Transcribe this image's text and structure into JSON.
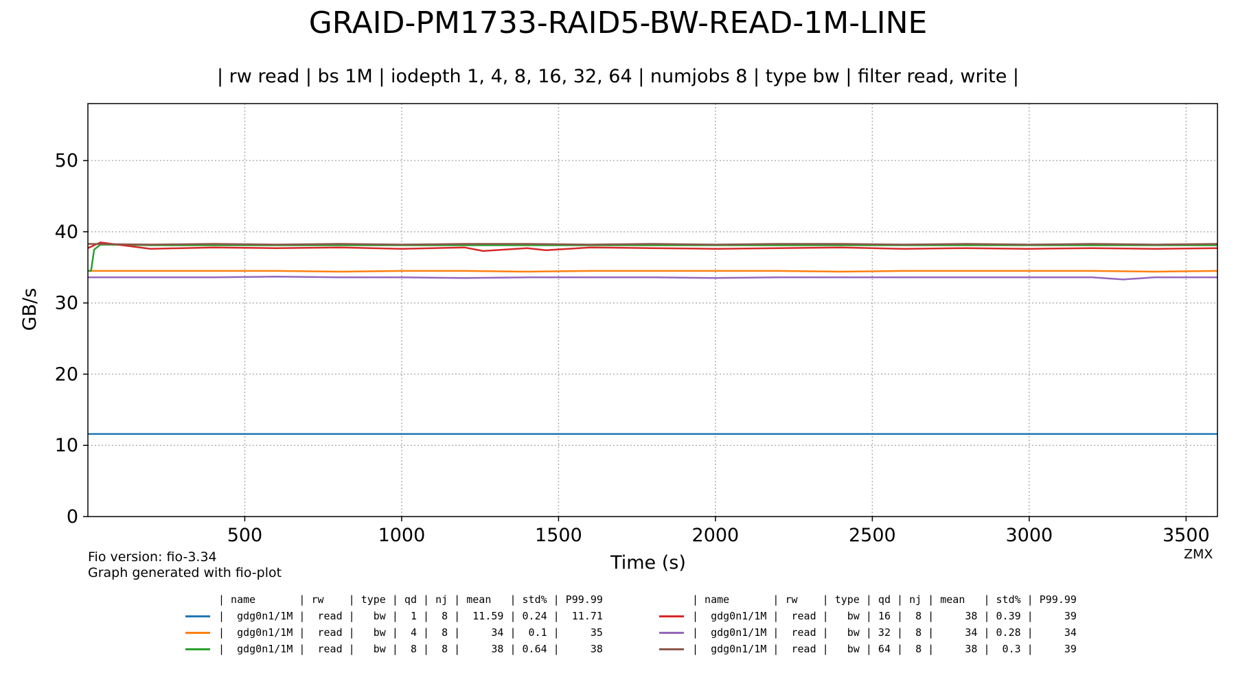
{
  "chart_data": {
    "type": "line",
    "title": "GRAID-PM1733-RAID5-BW-READ-1M-LINE",
    "subtitle": "| rw read | bs 1M | iodepth 1, 4, 8, 16, 32, 64 | numjobs 8 | type bw | filter read, write |",
    "xlabel": "Time (s)",
    "ylabel": "GB/s",
    "xlim": [
      0,
      3600
    ],
    "ylim": [
      0,
      58
    ],
    "xticks": [
      500,
      1000,
      1500,
      2000,
      2500,
      3000,
      3500
    ],
    "yticks": [
      0,
      10,
      20,
      30,
      40,
      50
    ],
    "grid": true,
    "legend_placement": "bottom-center",
    "series": [
      {
        "color": "#1f77b4",
        "x": [
          0,
          200,
          400,
          600,
          800,
          1000,
          1200,
          1400,
          1600,
          1800,
          2000,
          2200,
          2400,
          2600,
          2800,
          3000,
          3200,
          3400,
          3600
        ],
        "y": [
          11.6,
          11.6,
          11.6,
          11.6,
          11.6,
          11.6,
          11.6,
          11.6,
          11.6,
          11.6,
          11.6,
          11.6,
          11.6,
          11.6,
          11.6,
          11.6,
          11.6,
          11.6,
          11.6
        ]
      },
      {
        "color": "#ff7f0e",
        "x": [
          0,
          200,
          400,
          600,
          800,
          1000,
          1200,
          1400,
          1600,
          1800,
          2000,
          2200,
          2400,
          2600,
          2800,
          3000,
          3200,
          3400,
          3600
        ],
        "y": [
          34.5,
          34.5,
          34.5,
          34.5,
          34.4,
          34.5,
          34.5,
          34.4,
          34.5,
          34.5,
          34.5,
          34.5,
          34.4,
          34.5,
          34.5,
          34.5,
          34.5,
          34.4,
          34.5
        ]
      },
      {
        "color": "#2ca02c",
        "x": [
          0,
          10,
          20,
          40,
          200,
          400,
          600,
          800,
          1000,
          1200,
          1400,
          1600,
          1800,
          2000,
          2200,
          2400,
          2600,
          2800,
          3000,
          3200,
          3400,
          3600
        ],
        "y": [
          34.5,
          34.5,
          37.5,
          38.2,
          38.1,
          38.1,
          38.1,
          38.1,
          38.1,
          38.1,
          38.1,
          38.1,
          38.1,
          38.1,
          38.1,
          38.1,
          38.1,
          38.1,
          38.1,
          38.1,
          38.1,
          38.1
        ]
      },
      {
        "color": "#d62728",
        "x": [
          0,
          40,
          200,
          400,
          600,
          800,
          1000,
          1200,
          1260,
          1400,
          1460,
          1600,
          1800,
          2000,
          2200,
          2400,
          2600,
          2800,
          3000,
          3200,
          3400,
          3600
        ],
        "y": [
          37.7,
          38.5,
          37.6,
          37.8,
          37.7,
          37.8,
          37.6,
          37.8,
          37.3,
          37.7,
          37.4,
          37.8,
          37.7,
          37.6,
          37.7,
          37.8,
          37.6,
          37.7,
          37.6,
          37.7,
          37.6,
          37.7
        ]
      },
      {
        "color": "#9467bd",
        "x": [
          0,
          200,
          400,
          600,
          800,
          1000,
          1200,
          1400,
          1600,
          1800,
          2000,
          2200,
          2400,
          2600,
          2800,
          3000,
          3200,
          3300,
          3400,
          3600
        ],
        "y": [
          33.6,
          33.6,
          33.6,
          33.7,
          33.6,
          33.6,
          33.5,
          33.6,
          33.6,
          33.6,
          33.5,
          33.6,
          33.6,
          33.6,
          33.6,
          33.6,
          33.6,
          33.3,
          33.6,
          33.6
        ]
      },
      {
        "color": "#8c564b",
        "x": [
          0,
          200,
          400,
          600,
          800,
          1000,
          1200,
          1400,
          1600,
          1800,
          2000,
          2200,
          2400,
          2600,
          2800,
          3000,
          3200,
          3400,
          3600
        ],
        "y": [
          38.3,
          38.2,
          38.3,
          38.2,
          38.3,
          38.2,
          38.3,
          38.3,
          38.2,
          38.3,
          38.2,
          38.3,
          38.3,
          38.2,
          38.3,
          38.2,
          38.3,
          38.2,
          38.3
        ]
      }
    ]
  },
  "notes": {
    "fio_version": "Fio version: fio-3.34",
    "generated_with": "Graph generated with fio-plot",
    "watermark": "ZMX"
  },
  "legend_table": {
    "header": "| name       | rw    | type | qd | nj | mean   | std% | P99.99",
    "rows": [
      "|  gdg0n1/1M |  read |   bw |  1 |  8 |  11.59 | 0.24 |  11.71",
      "|  gdg0n1/1M |  read |   bw |  4 |  8 |     34 |  0.1 |     35",
      "|  gdg0n1/1M |  read |   bw |  8 |  8 |     38 | 0.64 |     38",
      "|  gdg0n1/1M |  read |   bw | 16 |  8 |     38 | 0.39 |     39",
      "|  gdg0n1/1M |  read |   bw | 32 |  8 |     34 | 0.28 |     34",
      "|  gdg0n1/1M |  read |   bw | 64 |  8 |     38 |  0.3 |     39"
    ]
  }
}
